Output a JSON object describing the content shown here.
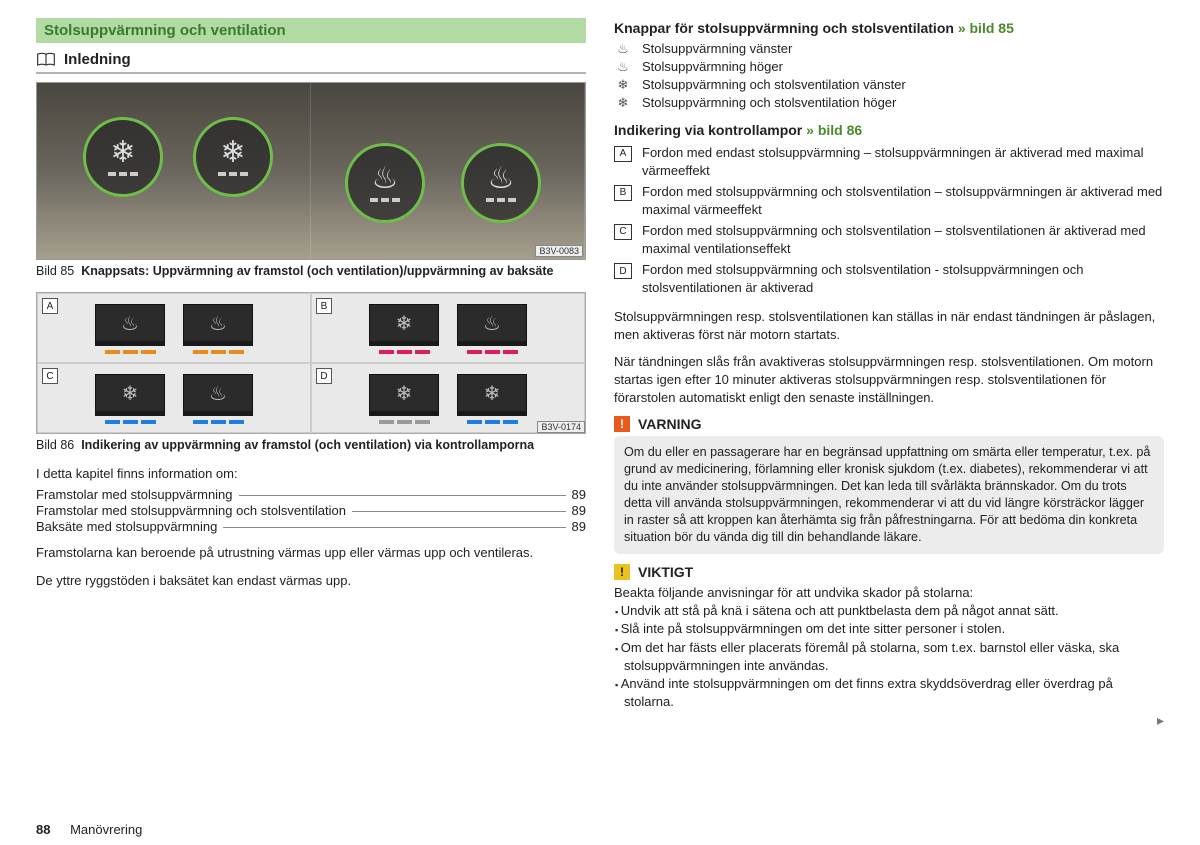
{
  "section_title": "Stolsuppvärmning och ventilation",
  "subheader_title": "Inledning",
  "figure85": {
    "label": "B3V-0083",
    "caption_prefix": "Bild 85",
    "caption_text": "Knappsats: Uppvärmning av framstol (och ventilation)/uppvärmning av baksäte"
  },
  "figure86": {
    "label": "B3V-0174",
    "caption_prefix": "Bild 86",
    "caption_text": "Indikering av uppvärmning av framstol (och ventilation) via kontrollamporna",
    "panels": {
      "A": {
        "color": "#e88a1c",
        "glyph_pair": [
          "🔥",
          "🔥"
        ]
      },
      "B": {
        "color": "#e01d5a",
        "glyph_pair": [
          "❄",
          "🔥"
        ]
      },
      "C": {
        "color": "#1e7fe0",
        "glyph_pair": [
          "❄",
          "🔥"
        ]
      },
      "D": {
        "color_left": "#9a9a9a",
        "color_right": "#1e7fe0",
        "glyph_pair": [
          "❄",
          "❄"
        ]
      }
    }
  },
  "intro_text": "I detta kapitel finns information om:",
  "toc": [
    {
      "label": "Framstolar med stolsuppvärmning",
      "page": "89"
    },
    {
      "label": "Framstolar med stolsuppvärmning och stolsventilation",
      "page": "89"
    },
    {
      "label": "Baksäte med stolsuppvärmning",
      "page": "89"
    }
  ],
  "para1": "Framstolarna kan beroende på utrustning värmas upp eller värmas upp och ventileras.",
  "para2": "De yttre ryggstöden i baksätet kan endast värmas upp.",
  "right": {
    "h1_prefix": "Knappar för stolsuppvärmning och stolsventilation",
    "h1_link": "» bild 85",
    "buttons": [
      {
        "glyph": "♨",
        "text": "Stolsuppvärmning vänster"
      },
      {
        "glyph": "♨",
        "text": "Stolsuppvärmning höger"
      },
      {
        "glyph": "❄",
        "text": "Stolsuppvärmning och stolsventilation vänster"
      },
      {
        "glyph": "❄",
        "text": "Stolsuppvärmning och stolsventilation höger"
      }
    ],
    "h2_prefix": "Indikering via kontrollampor",
    "h2_link": "» bild 86",
    "letters": [
      {
        "tag": "A",
        "text": "Fordon med endast stolsuppvärmning – stolsuppvärmningen är aktiverad med maximal värmeeffekt"
      },
      {
        "tag": "B",
        "text": "Fordon med stolsuppvärmning och stolsventilation – stolsuppvärmningen är aktiverad med maximal värmeeffekt"
      },
      {
        "tag": "C",
        "text": "Fordon med stolsuppvärmning och stolsventilation – stolsventilationen är aktiverad med maximal ventilationseffekt"
      },
      {
        "tag": "D",
        "text": "Fordon med stolsuppvärmning och stolsventilation - stolsuppvärmningen och stolsventilationen är aktiverad"
      }
    ],
    "p1": "Stolsuppvärmningen resp. stolsventilationen kan ställas in när endast tändningen är påslagen, men aktiveras först när motorn startats.",
    "p2": "När tändningen slås från avaktiveras stolsuppvärmningen resp. stolsventilationen. Om motorn startas igen efter 10 minuter aktiveras stolsuppvärmningen resp. stolsventilationen för förarstolen automatiskt enligt den senaste inställningen.",
    "warning_title": "VARNING",
    "warning_body": "Om du eller en passagerare har en begränsad uppfattning om smärta eller temperatur, t.ex. på grund av medicinering, förlamning eller kronisk sjukdom (t.ex. diabetes), rekommenderar vi att du inte använder stolsuppvärmningen. Det kan leda till svårläkta brännskador. Om du trots detta vill använda stolsuppvärmningen, rekommenderar vi att du vid längre körsträckor lägger in raster så att kroppen kan återhämta sig från påfrestningarna. För att bedöma din konkreta situation bör du vända dig till din behandlande läkare.",
    "important_title": "VIKTIGT",
    "important_intro": "Beakta följande anvisningar för att undvika skador på stolarna:",
    "important_items": [
      "Undvik att stå på knä i sätena och att punktbelasta dem på något annat sätt.",
      "Slå inte på stolsuppvärmningen om det inte sitter personer i stolen.",
      "Om det har fästs eller placerats föremål på stolarna, som t.ex. barnstol eller väska, ska stolsuppvärmningen inte användas.",
      "Använd inte stolsuppvärmningen om det finns extra skyddsöverdrag eller överdrag på stolarna."
    ]
  },
  "footer": {
    "page": "88",
    "title": "Manövrering"
  }
}
